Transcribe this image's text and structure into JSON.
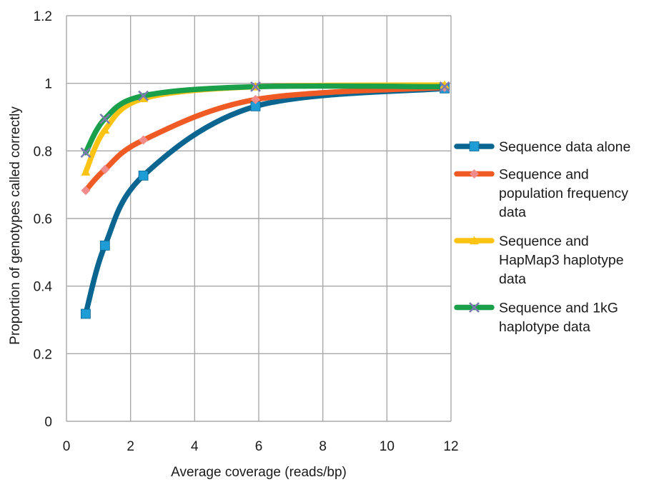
{
  "chart_data": {
    "type": "line",
    "title": "",
    "xlabel": "Average coverage (reads/bp)",
    "ylabel": "Proportion of genotypes called correctly",
    "xlim": [
      0,
      12
    ],
    "ylim": [
      0,
      1.2
    ],
    "x_ticks": [
      "0",
      "2",
      "4",
      "6",
      "8",
      "10",
      "12"
    ],
    "y_ticks": [
      "0",
      "0.2",
      "0.4",
      "0.6",
      "0.8",
      "1",
      "1.2"
    ],
    "grid": true,
    "smooth": true,
    "legend_position": "right",
    "series": [
      {
        "name": "Sequence data alone",
        "legend_lines": [
          "Sequence data alone"
        ],
        "color": "#0a6690",
        "marker": "square",
        "marker_color": "#1e9cd6",
        "points": [
          [
            0.6,
            0.318
          ],
          [
            1.2,
            0.52
          ],
          [
            2.4,
            0.727
          ],
          [
            5.9,
            0.932
          ],
          [
            11.8,
            0.985
          ]
        ]
      },
      {
        "name": "Sequence and population frequency data",
        "legend_lines": [
          "Sequence and",
          "population frequency",
          "data"
        ],
        "color": "#f05a24",
        "marker": "diamond",
        "marker_color": "#f08c8c",
        "points": [
          [
            0.6,
            0.683
          ],
          [
            1.2,
            0.745
          ],
          [
            2.4,
            0.832
          ],
          [
            5.9,
            0.952
          ],
          [
            11.8,
            0.988
          ]
        ]
      },
      {
        "name": "Sequence and HapMap3 haplotype data",
        "legend_lines": [
          "Sequence and",
          "HapMap3 haplotype",
          "data"
        ],
        "color": "#fdc313",
        "marker": "triangle",
        "marker_color": "#fdc313",
        "points": [
          [
            0.6,
            0.738
          ],
          [
            1.2,
            0.862
          ],
          [
            2.4,
            0.955
          ],
          [
            5.9,
            0.99
          ],
          [
            11.8,
            0.995
          ]
        ]
      },
      {
        "name": "Sequence and 1kG haplotype data",
        "legend_lines": [
          "Sequence and 1kG",
          "haplotype data"
        ],
        "color": "#1aa04a",
        "marker": "x",
        "marker_color": "#7a7ab0",
        "points": [
          [
            0.6,
            0.795
          ],
          [
            1.2,
            0.895
          ],
          [
            2.4,
            0.963
          ],
          [
            5.9,
            0.99
          ],
          [
            11.8,
            0.99
          ]
        ]
      }
    ]
  }
}
